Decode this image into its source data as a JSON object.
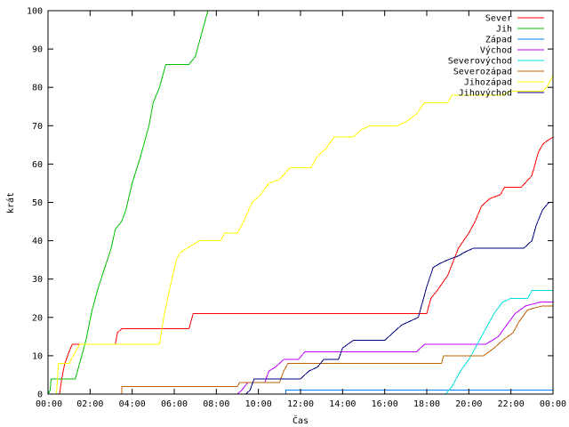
{
  "chart_data": {
    "type": "line",
    "title": "",
    "xlabel": "Čas",
    "ylabel": "krát",
    "xlim": [
      0,
      24
    ],
    "ylim": [
      0,
      100
    ],
    "x_ticks": [
      {
        "value": 0,
        "label": "00:00"
      },
      {
        "value": 2,
        "label": "02:00"
      },
      {
        "value": 4,
        "label": "04:00"
      },
      {
        "value": 6,
        "label": "06:00"
      },
      {
        "value": 8,
        "label": "08:00"
      },
      {
        "value": 10,
        "label": "10:00"
      },
      {
        "value": 12,
        "label": "12:00"
      },
      {
        "value": 14,
        "label": "14:00"
      },
      {
        "value": 16,
        "label": "16:00"
      },
      {
        "value": 18,
        "label": "18:00"
      },
      {
        "value": 20,
        "label": "20:00"
      },
      {
        "value": 22,
        "label": "22:00"
      },
      {
        "value": 24,
        "label": "00:00"
      }
    ],
    "y_ticks": [
      {
        "value": 0,
        "label": "0"
      },
      {
        "value": 10,
        "label": "10"
      },
      {
        "value": 20,
        "label": "20"
      },
      {
        "value": 30,
        "label": "30"
      },
      {
        "value": 40,
        "label": "40"
      },
      {
        "value": 50,
        "label": "50"
      },
      {
        "value": 60,
        "label": "60"
      },
      {
        "value": 70,
        "label": "70"
      },
      {
        "value": 80,
        "label": "80"
      },
      {
        "value": 90,
        "label": "90"
      },
      {
        "value": 100,
        "label": "100"
      }
    ],
    "grid": false,
    "legend_position": "top-right",
    "series": [
      {
        "name": "Sever",
        "color": "#ff0000",
        "points": [
          [
            0.55,
            0
          ],
          [
            0.65,
            4
          ],
          [
            0.8,
            8
          ],
          [
            1.0,
            11
          ],
          [
            1.15,
            13
          ],
          [
            1.6,
            13
          ],
          [
            3.2,
            13
          ],
          [
            3.3,
            16
          ],
          [
            3.5,
            17
          ],
          [
            6.7,
            17
          ],
          [
            6.8,
            19
          ],
          [
            6.9,
            21
          ],
          [
            17.5,
            21
          ],
          [
            18.0,
            21
          ],
          [
            18.2,
            25
          ],
          [
            18.5,
            27
          ],
          [
            19.0,
            31
          ],
          [
            19.5,
            38
          ],
          [
            20.0,
            42
          ],
          [
            20.3,
            45
          ],
          [
            20.6,
            49
          ],
          [
            21.0,
            51
          ],
          [
            21.5,
            52
          ],
          [
            21.7,
            54
          ],
          [
            22.5,
            54
          ],
          [
            23.0,
            57
          ],
          [
            23.3,
            63
          ],
          [
            23.5,
            65
          ],
          [
            23.7,
            66
          ],
          [
            24.0,
            67
          ]
        ]
      },
      {
        "name": "Jih",
        "color": "#00c000",
        "points": [
          [
            0,
            0
          ],
          [
            0.1,
            1
          ],
          [
            0.15,
            4
          ],
          [
            1.3,
            4
          ],
          [
            1.6,
            10
          ],
          [
            1.8,
            14
          ],
          [
            2.1,
            22
          ],
          [
            2.4,
            28
          ],
          [
            2.7,
            33
          ],
          [
            3.0,
            38
          ],
          [
            3.2,
            43
          ],
          [
            3.5,
            45
          ],
          [
            3.7,
            48
          ],
          [
            4.0,
            55
          ],
          [
            4.4,
            62
          ],
          [
            4.8,
            70
          ],
          [
            5.0,
            76
          ],
          [
            5.3,
            80
          ],
          [
            5.6,
            86
          ],
          [
            6.7,
            86
          ],
          [
            7.0,
            88
          ],
          [
            7.2,
            92
          ],
          [
            7.4,
            96
          ],
          [
            7.6,
            100
          ]
        ]
      },
      {
        "name": "Západ",
        "color": "#0080ff",
        "points": [
          [
            0,
            0
          ],
          [
            11.3,
            0
          ],
          [
            11.3,
            1
          ],
          [
            24.0,
            1
          ]
        ]
      },
      {
        "name": "Východ",
        "color": "#c000ff",
        "points": [
          [
            0,
            0
          ],
          [
            9.0,
            0
          ],
          [
            9.2,
            1
          ],
          [
            9.5,
            3
          ],
          [
            10.3,
            3
          ],
          [
            10.5,
            6
          ],
          [
            10.8,
            7
          ],
          [
            11.2,
            9
          ],
          [
            11.9,
            9
          ],
          [
            12.2,
            11
          ],
          [
            17.5,
            11
          ],
          [
            17.9,
            13
          ],
          [
            20.8,
            13
          ],
          [
            21.4,
            15
          ],
          [
            21.8,
            18
          ],
          [
            22.2,
            21
          ],
          [
            22.7,
            23
          ],
          [
            23.4,
            24
          ],
          [
            24.0,
            24
          ]
        ]
      },
      {
        "name": "Severovýchod",
        "color": "#00e0e0",
        "points": [
          [
            0,
            0
          ],
          [
            18.9,
            0
          ],
          [
            19.2,
            2
          ],
          [
            19.6,
            6
          ],
          [
            20.0,
            9
          ],
          [
            20.3,
            12
          ],
          [
            20.6,
            15
          ],
          [
            20.9,
            18
          ],
          [
            21.2,
            21
          ],
          [
            21.6,
            24
          ],
          [
            22.0,
            25
          ],
          [
            22.8,
            25
          ],
          [
            23.0,
            27
          ],
          [
            24.0,
            27
          ]
        ]
      },
      {
        "name": "Severozápad",
        "color": "#c06000",
        "points": [
          [
            0,
            0
          ],
          [
            3.5,
            0
          ],
          [
            3.5,
            2
          ],
          [
            9.0,
            2
          ],
          [
            9.1,
            3
          ],
          [
            11.0,
            3
          ],
          [
            11.2,
            6
          ],
          [
            11.4,
            8
          ],
          [
            18.7,
            8
          ],
          [
            18.8,
            10
          ],
          [
            20.7,
            10
          ],
          [
            21.2,
            12
          ],
          [
            21.6,
            14
          ],
          [
            22.1,
            16
          ],
          [
            22.4,
            19
          ],
          [
            22.8,
            22
          ],
          [
            23.5,
            23
          ],
          [
            24.0,
            23
          ]
        ]
      },
      {
        "name": "Jihozápad",
        "color": "#ffff00",
        "points": [
          [
            0.4,
            0
          ],
          [
            0.5,
            8
          ],
          [
            1.0,
            8
          ],
          [
            1.5,
            13
          ],
          [
            5.3,
            13
          ],
          [
            5.5,
            20
          ],
          [
            5.8,
            28
          ],
          [
            6.1,
            35
          ],
          [
            6.3,
            37
          ],
          [
            6.6,
            38
          ],
          [
            7.2,
            40
          ],
          [
            8.2,
            40
          ],
          [
            8.4,
            42
          ],
          [
            9.0,
            42
          ],
          [
            9.3,
            45
          ],
          [
            9.7,
            50
          ],
          [
            10.1,
            52
          ],
          [
            10.5,
            55
          ],
          [
            11.0,
            56
          ],
          [
            11.5,
            59
          ],
          [
            12.5,
            59
          ],
          [
            12.8,
            62
          ],
          [
            13.2,
            64
          ],
          [
            13.6,
            67
          ],
          [
            14.5,
            67
          ],
          [
            14.9,
            69
          ],
          [
            15.3,
            70
          ],
          [
            16.6,
            70
          ],
          [
            17.0,
            71
          ],
          [
            17.5,
            73
          ],
          [
            17.9,
            76
          ],
          [
            19.0,
            76
          ],
          [
            19.2,
            78
          ],
          [
            21.6,
            78
          ],
          [
            22.0,
            79
          ],
          [
            23.5,
            79
          ],
          [
            23.7,
            80
          ],
          [
            24.0,
            83
          ]
        ]
      },
      {
        "name": "Jihovýchod",
        "color": "#000080",
        "points": [
          [
            0,
            0
          ],
          [
            9.4,
            0
          ],
          [
            9.6,
            1
          ],
          [
            9.8,
            4
          ],
          [
            12.0,
            4
          ],
          [
            12.4,
            6
          ],
          [
            12.8,
            7
          ],
          [
            13.1,
            9
          ],
          [
            13.8,
            9
          ],
          [
            14.0,
            12
          ],
          [
            14.5,
            14
          ],
          [
            16.0,
            14
          ],
          [
            16.4,
            16
          ],
          [
            16.8,
            18
          ],
          [
            17.2,
            19
          ],
          [
            17.6,
            20
          ],
          [
            18.0,
            28
          ],
          [
            18.3,
            33
          ],
          [
            18.6,
            34
          ],
          [
            19.0,
            35
          ],
          [
            19.5,
            36
          ],
          [
            19.8,
            37
          ],
          [
            20.2,
            38
          ],
          [
            22.6,
            38
          ],
          [
            23.0,
            40
          ],
          [
            23.2,
            44
          ],
          [
            23.5,
            48
          ],
          [
            23.8,
            50
          ],
          [
            24.0,
            50
          ]
        ]
      }
    ]
  }
}
